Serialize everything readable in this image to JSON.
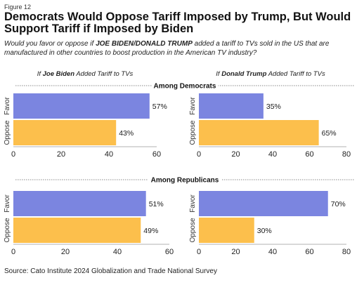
{
  "figure_label": "Figure 12",
  "title": "Democrats Would Oppose Tariff Imposed by Trump, But Would Support Tariff if Imposed by Biden",
  "subtitle": {
    "before": "Would you favor or oppose if ",
    "names": "JOE BIDEN/DONALD TRUMP",
    "after": " added a tariff to TVs sold in the US that are manufactured in other countries to boost production in the American TV  industry?"
  },
  "source": "Source: Cato Institute 2024 Globalization and Trade National Survey",
  "colors": {
    "favor": "#7b85e0",
    "oppose": "#fcbf4c"
  },
  "chart_data": [
    {
      "type": "bar",
      "orientation": "horizontal",
      "panel_title": {
        "pre": "If ",
        "name": "Joe Biden",
        "post": " Added Tariff to TVs"
      },
      "group_title": "Among Democrats",
      "categories": [
        "Favor",
        "Oppose"
      ],
      "values": [
        57,
        43
      ],
      "data_labels": [
        "57%",
        "43%"
      ],
      "xlim": [
        0,
        60
      ],
      "xticks": [
        0,
        20,
        40,
        60
      ]
    },
    {
      "type": "bar",
      "orientation": "horizontal",
      "panel_title": {
        "pre": "If ",
        "name": "Donald Trump",
        "post": " Added Tariff to TVs"
      },
      "group_title": "Among Democrats",
      "categories": [
        "Favor",
        "Oppose"
      ],
      "values": [
        35,
        65
      ],
      "data_labels": [
        "35%",
        "65%"
      ],
      "xlim": [
        0,
        80
      ],
      "xticks": [
        0,
        20,
        40,
        60,
        80
      ]
    },
    {
      "type": "bar",
      "orientation": "horizontal",
      "group_title": "Among Republicans",
      "categories": [
        "Favor",
        "Oppose"
      ],
      "values": [
        51,
        49
      ],
      "data_labels": [
        "51%",
        "49%"
      ],
      "xlim": [
        0,
        60
      ],
      "xticks": [
        0,
        20,
        40,
        60
      ]
    },
    {
      "type": "bar",
      "orientation": "horizontal",
      "group_title": "Among Republicans",
      "categories": [
        "Favor",
        "Oppose"
      ],
      "values": [
        70,
        30
      ],
      "data_labels": [
        "70%",
        "30%"
      ],
      "xlim": [
        0,
        80
      ],
      "xticks": [
        0,
        20,
        40,
        60,
        80
      ]
    }
  ]
}
